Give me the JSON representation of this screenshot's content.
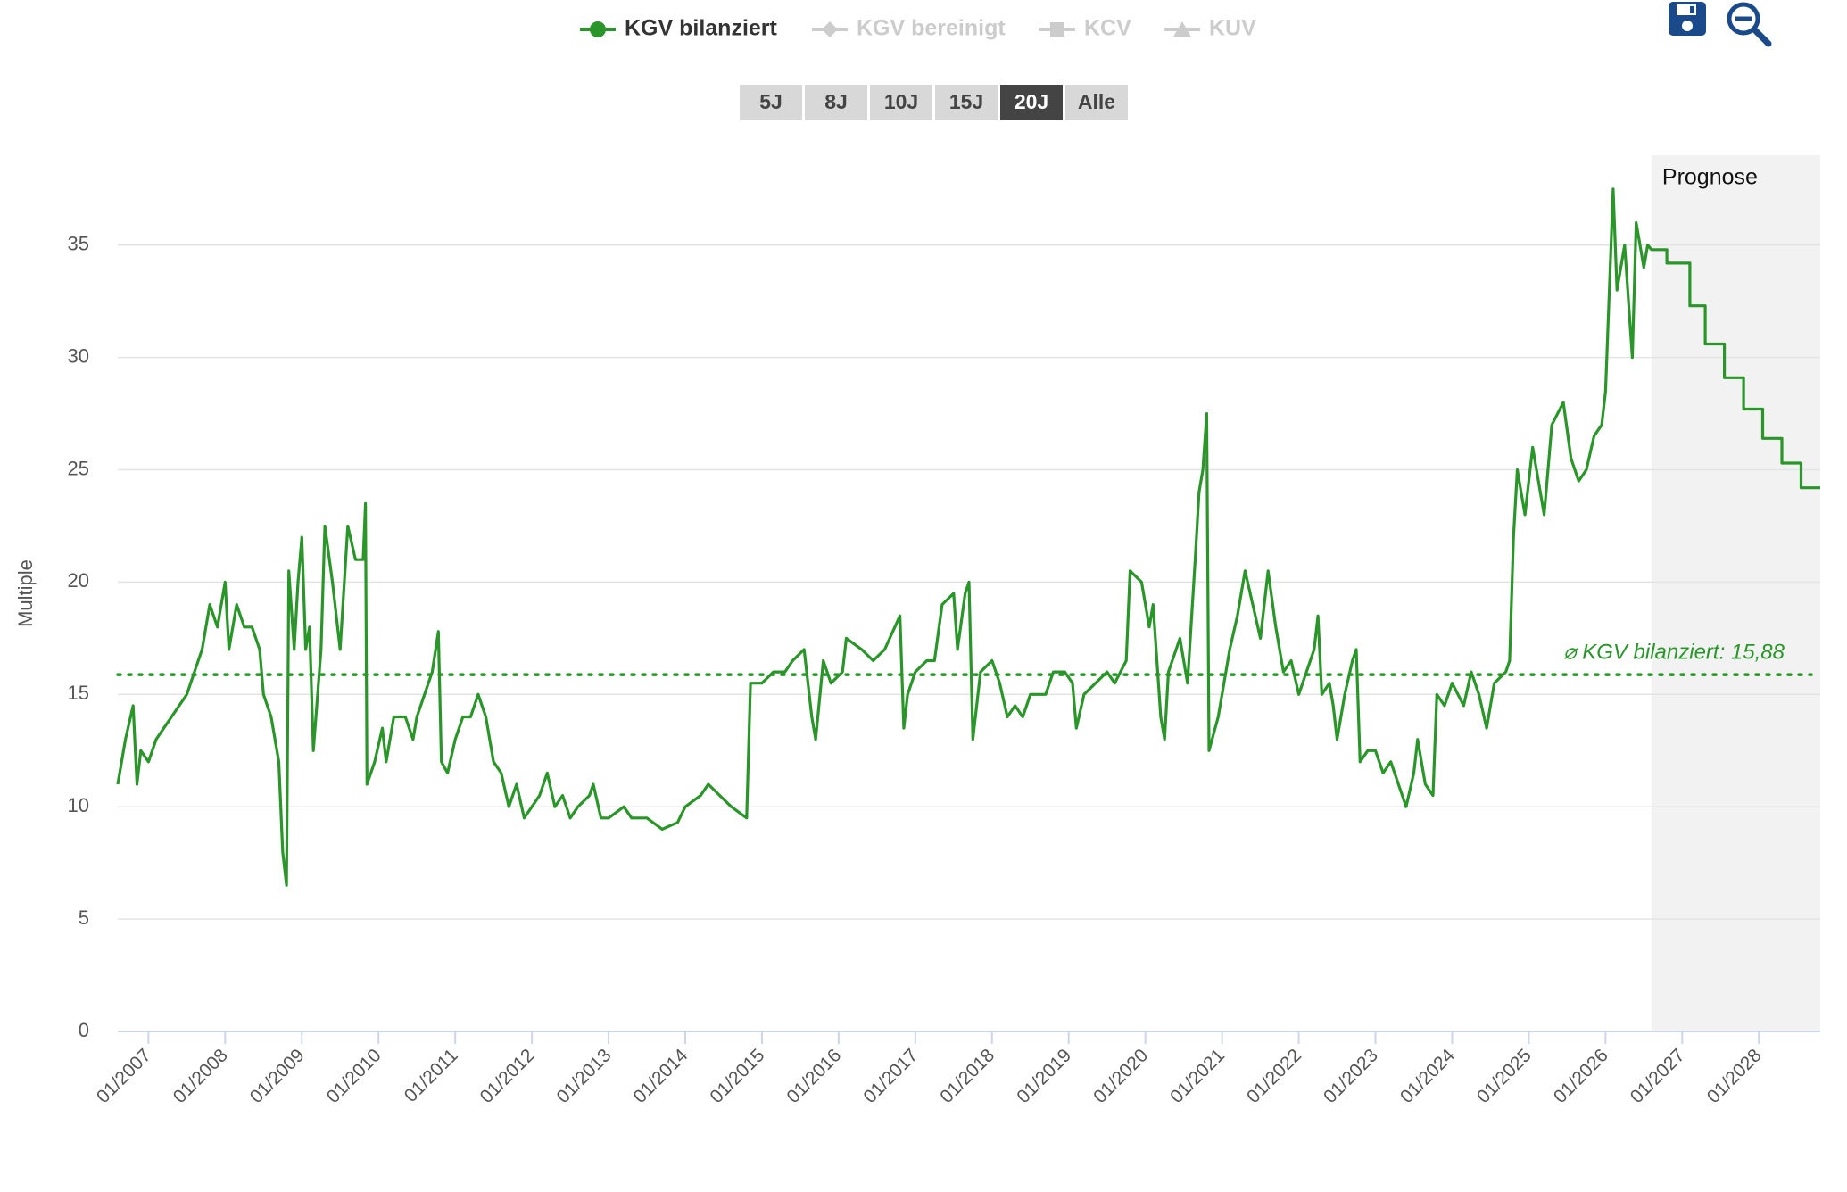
{
  "chart_data": {
    "type": "line",
    "y_axis_label": "Multiple",
    "series": [
      {
        "name": "KGV bilanziert",
        "color": "#2a962a",
        "x": [
          2006.6,
          2006.7,
          2006.8,
          2006.85,
          2006.9,
          2007.0,
          2007.1,
          2007.3,
          2007.5,
          2007.6,
          2007.7,
          2007.8,
          2007.9,
          2008.0,
          2008.05,
          2008.15,
          2008.25,
          2008.35,
          2008.45,
          2008.5,
          2008.6,
          2008.7,
          2008.75,
          2008.8,
          2008.83,
          2008.9,
          2008.95,
          2009.0,
          2009.05,
          2009.1,
          2009.15,
          2009.25,
          2009.3,
          2009.4,
          2009.5,
          2009.6,
          2009.7,
          2009.8,
          2009.83,
          2009.85,
          2009.95,
          2010.05,
          2010.1,
          2010.2,
          2010.35,
          2010.45,
          2010.5,
          2010.6,
          2010.7,
          2010.78,
          2010.82,
          2010.9,
          2011.0,
          2011.1,
          2011.2,
          2011.3,
          2011.4,
          2011.5,
          2011.6,
          2011.7,
          2011.8,
          2011.9,
          2012.0,
          2012.1,
          2012.2,
          2012.3,
          2012.4,
          2012.5,
          2012.6,
          2012.75,
          2012.8,
          2012.9,
          2013.0,
          2013.2,
          2013.3,
          2013.5,
          2013.7,
          2013.9,
          2014.0,
          2014.2,
          2014.3,
          2014.45,
          2014.6,
          2014.8,
          2014.85,
          2015.0,
          2015.15,
          2015.3,
          2015.4,
          2015.55,
          2015.65,
          2015.7,
          2015.8,
          2015.9,
          2016.05,
          2016.1,
          2016.3,
          2016.45,
          2016.6,
          2016.8,
          2016.85,
          2016.9,
          2017.0,
          2017.15,
          2017.25,
          2017.35,
          2017.5,
          2017.55,
          2017.65,
          2017.7,
          2017.75,
          2017.85,
          2018.0,
          2018.1,
          2018.2,
          2018.3,
          2018.4,
          2018.5,
          2018.7,
          2018.8,
          2018.95,
          2019.05,
          2019.1,
          2019.2,
          2019.35,
          2019.5,
          2019.6,
          2019.75,
          2019.8,
          2019.95,
          2020.05,
          2020.1,
          2020.2,
          2020.25,
          2020.3,
          2020.45,
          2020.55,
          2020.65,
          2020.7,
          2020.75,
          2020.8,
          2020.83,
          2020.95,
          2021.1,
          2021.2,
          2021.3,
          2021.4,
          2021.5,
          2021.6,
          2021.7,
          2021.8,
          2021.9,
          2022.0,
          2022.1,
          2022.2,
          2022.25,
          2022.3,
          2022.4,
          2022.45,
          2022.5,
          2022.6,
          2022.7,
          2022.75,
          2022.8,
          2022.9,
          2023.0,
          2023.1,
          2023.2,
          2023.3,
          2023.4,
          2023.5,
          2023.55,
          2023.65,
          2023.75,
          2023.8,
          2023.9,
          2024.0,
          2024.15,
          2024.25,
          2024.35,
          2024.45,
          2024.55,
          2024.7,
          2024.75,
          2024.8,
          2024.85,
          2024.95,
          2025.05,
          2025.1,
          2025.2,
          2025.3,
          2025.45,
          2025.55,
          2025.65,
          2025.75,
          2025.85,
          2025.95,
          2026.0,
          2026.1,
          2026.15,
          2026.25,
          2026.35,
          2026.4,
          2026.5,
          2026.55,
          2026.6,
          2026.8,
          2026.8,
          2027.1,
          2027.1,
          2027.3,
          2027.3,
          2027.55,
          2027.55,
          2027.8,
          2027.8,
          2028.05,
          2028.05,
          2028.3,
          2028.3,
          2028.55,
          2028.55,
          2028.8
        ],
        "values": [
          11,
          13,
          14.5,
          11,
          12.5,
          12,
          13,
          14,
          15,
          16,
          17,
          19,
          18,
          20,
          17,
          19,
          18,
          18,
          17,
          15,
          14,
          12,
          8,
          6.5,
          20.5,
          17,
          20,
          22,
          17,
          18,
          12.5,
          17,
          22.5,
          20,
          17,
          22.5,
          21,
          21,
          23.5,
          11,
          12,
          13.5,
          12,
          14,
          14,
          13,
          14,
          15,
          16,
          17.8,
          12,
          11.5,
          13,
          14,
          14,
          15,
          14,
          12,
          11.5,
          10,
          11,
          9.5,
          10,
          10.5,
          11.5,
          10,
          10.5,
          9.5,
          10,
          10.5,
          11,
          9.5,
          9.5,
          10,
          9.5,
          9.5,
          9,
          9.3,
          10,
          10.5,
          11,
          10.5,
          10,
          9.5,
          15.5,
          15.5,
          16,
          16,
          16.5,
          17,
          14,
          13,
          16.5,
          15.5,
          16,
          17.5,
          17,
          16.5,
          17,
          18.5,
          13.5,
          15,
          16,
          16.5,
          16.5,
          19,
          19.5,
          17,
          19.5,
          20,
          13,
          16,
          16.5,
          15.5,
          14,
          14.5,
          14,
          15,
          15,
          16,
          16,
          15.5,
          13.5,
          15,
          15.5,
          16,
          15.5,
          16.5,
          20.5,
          20,
          18,
          19,
          14,
          13,
          16,
          17.5,
          15.5,
          21,
          24,
          25,
          27.5,
          12.5,
          14,
          17,
          18.5,
          20.5,
          19,
          17.5,
          20.5,
          18,
          16,
          16.5,
          15,
          16,
          17,
          18.5,
          15,
          15.5,
          14.5,
          13,
          15,
          16.5,
          17,
          12,
          12.5,
          12.5,
          11.5,
          12,
          11,
          10,
          11.5,
          13,
          11,
          10.5,
          15,
          14.5,
          15.5,
          14.5,
          16,
          15,
          13.5,
          15.5,
          16,
          16.5,
          22,
          25,
          23,
          26,
          25,
          23,
          27,
          28,
          25.5,
          24.5,
          25,
          26.5,
          27,
          28.5,
          37.5,
          33,
          35,
          30,
          36,
          34,
          35,
          34.8,
          34.8,
          34.2,
          34.2,
          32.3,
          32.3,
          30.6,
          30.6,
          29.1,
          29.1,
          27.7,
          27.7,
          26.4,
          26.4,
          25.3,
          25.3,
          24.2,
          24.2
        ]
      }
    ],
    "legend_inactive": [
      {
        "name": "KGV bereinigt",
        "marker": "diamond"
      },
      {
        "name": "KCV",
        "marker": "square"
      },
      {
        "name": "KUV",
        "marker": "triangle"
      }
    ],
    "range_buttons": [
      "5J",
      "8J",
      "10J",
      "15J",
      "20J",
      "Alle"
    ],
    "active_range": "20J",
    "average": {
      "value": 15.88,
      "label": "⌀ KGV bilanziert: 15,88"
    },
    "forecast": {
      "label": "Prognose",
      "start": 2026.6
    },
    "xlim": [
      2006.6,
      2028.8
    ],
    "xticks": [
      {
        "value": 2007,
        "label": "01/2007"
      },
      {
        "value": 2008,
        "label": "01/2008"
      },
      {
        "value": 2009,
        "label": "01/2009"
      },
      {
        "value": 2010,
        "label": "01/2010"
      },
      {
        "value": 2011,
        "label": "01/2011"
      },
      {
        "value": 2012,
        "label": "01/2012"
      },
      {
        "value": 2013,
        "label": "01/2013"
      },
      {
        "value": 2014,
        "label": "01/2014"
      },
      {
        "value": 2015,
        "label": "01/2015"
      },
      {
        "value": 2016,
        "label": "01/2016"
      },
      {
        "value": 2017,
        "label": "01/2017"
      },
      {
        "value": 2018,
        "label": "01/2018"
      },
      {
        "value": 2019,
        "label": "01/2019"
      },
      {
        "value": 2020,
        "label": "01/2020"
      },
      {
        "value": 2021,
        "label": "01/2021"
      },
      {
        "value": 2022,
        "label": "01/2022"
      },
      {
        "value": 2023,
        "label": "01/2023"
      },
      {
        "value": 2024,
        "label": "01/2024"
      },
      {
        "value": 2025,
        "label": "01/2025"
      },
      {
        "value": 2026,
        "label": "01/2026"
      },
      {
        "value": 2027,
        "label": "01/2027"
      },
      {
        "value": 2028,
        "label": "01/2028"
      }
    ],
    "ylim": [
      0,
      39
    ],
    "yticks": [
      0,
      5,
      10,
      15,
      20,
      25,
      30,
      35
    ],
    "grid": true
  }
}
